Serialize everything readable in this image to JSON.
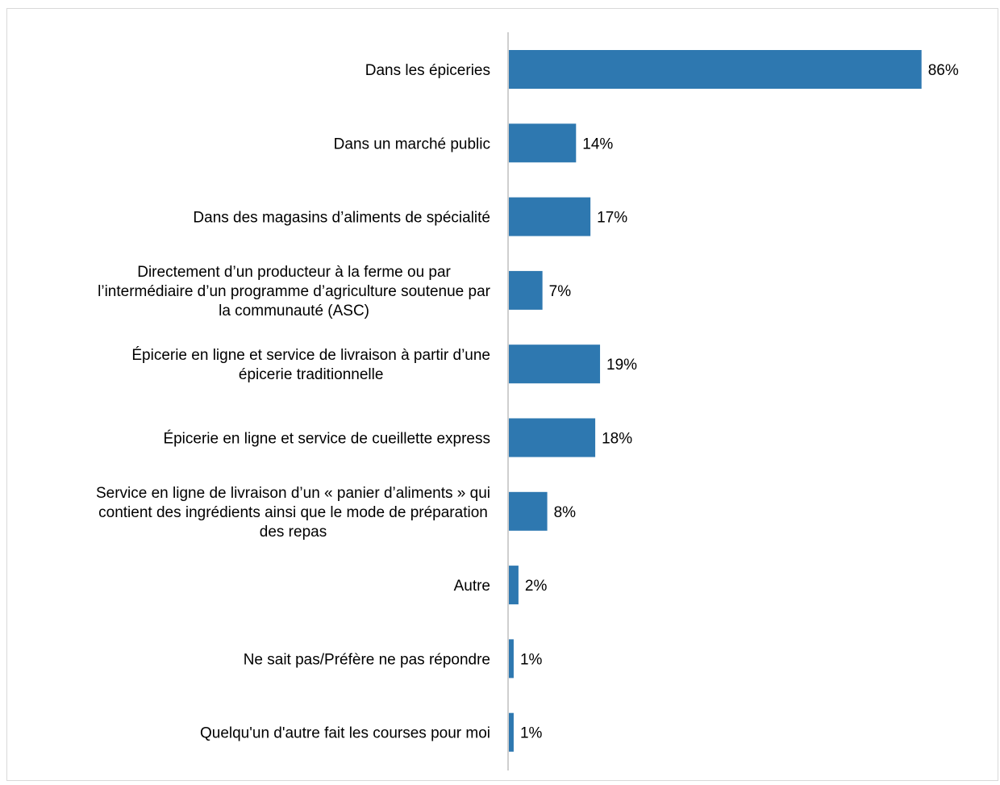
{
  "chart_data": {
    "type": "bar",
    "orientation": "horizontal",
    "categories": [
      [
        "Dans les épiceries"
      ],
      [
        "Dans un marché public"
      ],
      [
        "Dans des magasins d’aliments de spécialité"
      ],
      [
        "Directement d’un producteur à la ferme ou par",
        "l’intermédiaire d’un programme d’agriculture soutenue par",
        "la communauté (ASC)"
      ],
      [
        "Épicerie en ligne et service de livraison à partir d’une",
        "épicerie traditionnelle"
      ],
      [
        "Épicerie en ligne et service de cueillette express"
      ],
      [
        "Service en ligne de livraison d’un « panier d’aliments » qui",
        "contient des ingrédients ainsi que le mode de préparation",
        "des repas"
      ],
      [
        "Autre"
      ],
      [
        "Ne sait pas/Préfère ne pas répondre"
      ],
      [
        "Quelqu'un d'autre fait les courses pour moi"
      ]
    ],
    "values": [
      86,
      14,
      17,
      7,
      19,
      18,
      8,
      2,
      1,
      1
    ],
    "value_labels": [
      "86%",
      "14%",
      "17%",
      "7%",
      "19%",
      "18%",
      "8%",
      "2%",
      "1%",
      "1%"
    ],
    "unit": "%",
    "xlim": [
      0,
      100
    ],
    "bar_color": "#2e78b0",
    "axis_color": "#bfbfbf",
    "grid": false,
    "legend": "none"
  }
}
